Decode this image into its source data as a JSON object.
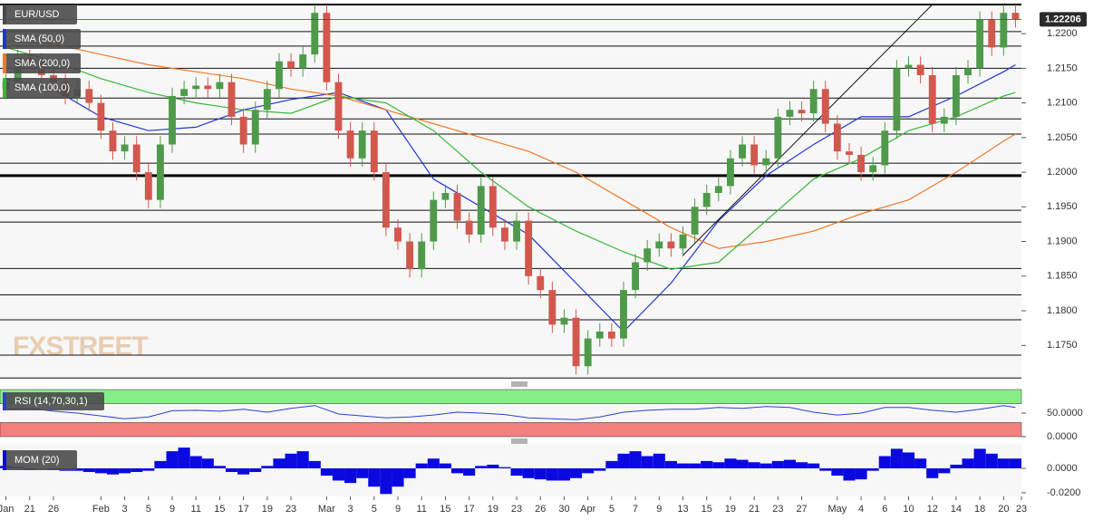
{
  "chart_data": [
    {
      "type": "candlestick",
      "title": "EUR/USD",
      "up_color": "#4f9a4a",
      "down_color": "#d2574d",
      "xlim": [
        -0.5,
        85.5
      ],
      "ylim": [
        1.1702,
        1.2242
      ],
      "yticks": [
        {
          "value": 1.175,
          "label": "1.1750"
        },
        {
          "value": 1.18,
          "label": "1.1800"
        },
        {
          "value": 1.185,
          "label": "1.1850"
        },
        {
          "value": 1.19,
          "label": "1.1900"
        },
        {
          "value": 1.195,
          "label": "1.1950"
        },
        {
          "value": 1.2,
          "label": "1.2000"
        },
        {
          "value": 1.205,
          "label": "1.2050"
        },
        {
          "value": 1.21,
          "label": "1.2100"
        },
        {
          "value": 1.215,
          "label": "1.2150"
        },
        {
          "value": 1.22,
          "label": "1.2200"
        }
      ],
      "last_price": 1.22206,
      "last_price_color": "#2a3f9a",
      "watermark": "FXSTREET",
      "levels": [
        1.2203,
        1.2182,
        1.215,
        1.2107,
        1.2077,
        1.2055,
        1.2013,
        1.1945,
        1.1928,
        1.1861,
        1.1823,
        1.1787,
        1.1736,
        1.1703
      ],
      "key_level": 1.1995,
      "trendline": {
        "x": [
          57,
          78
        ],
        "y": [
          1.188,
          1.2242
        ]
      },
      "x": [
        0,
        1,
        2,
        3,
        4,
        5,
        6,
        7,
        8,
        9,
        10,
        11,
        12,
        13,
        14,
        15,
        16,
        17,
        18,
        19,
        20,
        21,
        22,
        23,
        24,
        25,
        26,
        27,
        28,
        29,
        30,
        31,
        32,
        33,
        34,
        35,
        36,
        37,
        38,
        39,
        40,
        41,
        42,
        43,
        44,
        45,
        46,
        47,
        48,
        49,
        50,
        51,
        52,
        53,
        54,
        55,
        56,
        57,
        58,
        59,
        60,
        61,
        62,
        63,
        64,
        65,
        66,
        67,
        68,
        69,
        70,
        71,
        72,
        73,
        74,
        75,
        76,
        77,
        78,
        79,
        80,
        81,
        82,
        83,
        84,
        85
      ],
      "open": [
        1.212,
        1.213,
        1.2165,
        1.216,
        1.214,
        1.213,
        1.211,
        1.212,
        1.21,
        1.206,
        1.203,
        1.204,
        1.2,
        1.196,
        1.204,
        1.211,
        1.212,
        1.2125,
        1.212,
        1.213,
        1.208,
        1.204,
        1.209,
        1.212,
        1.216,
        1.215,
        1.217,
        1.223,
        1.213,
        1.206,
        1.202,
        1.206,
        1.2,
        1.192,
        1.19,
        1.186,
        1.19,
        1.196,
        1.197,
        1.193,
        1.191,
        1.198,
        1.192,
        1.19,
        1.193,
        1.185,
        1.183,
        1.178,
        1.179,
        1.172,
        1.176,
        1.177,
        1.176,
        1.183,
        1.187,
        1.189,
        1.19,
        1.189,
        1.191,
        1.195,
        1.197,
        1.198,
        1.202,
        1.204,
        1.201,
        1.202,
        1.208,
        1.209,
        1.2085,
        1.212,
        1.207,
        1.203,
        1.2025,
        1.2,
        1.201,
        1.206,
        1.215,
        1.2155,
        1.214,
        1.207,
        1.208,
        1.214,
        1.215,
        1.222,
        1.218,
        1.223
      ],
      "high": [
        1.2142,
        1.2177,
        1.2177,
        1.2172,
        1.2152,
        1.2142,
        1.2132,
        1.2132,
        1.2112,
        1.2072,
        1.2052,
        1.2052,
        1.2012,
        1.2052,
        1.2122,
        1.2132,
        1.2137,
        1.2137,
        1.2142,
        1.2142,
        1.2092,
        1.2102,
        1.2132,
        1.2172,
        1.2172,
        1.2182,
        1.2242,
        1.2242,
        1.2142,
        1.2072,
        1.2072,
        1.2072,
        1.2012,
        1.1932,
        1.1912,
        1.1912,
        1.1972,
        1.1982,
        1.1982,
        1.1942,
        1.1992,
        1.1992,
        1.1932,
        1.1942,
        1.1942,
        1.1862,
        1.1842,
        1.1802,
        1.1802,
        1.1772,
        1.1782,
        1.1782,
        1.1842,
        1.1882,
        1.1902,
        1.1912,
        1.1912,
        1.1922,
        1.1962,
        1.1982,
        1.1992,
        1.2032,
        1.2052,
        1.2052,
        1.2032,
        1.2092,
        1.2102,
        1.2102,
        1.2132,
        1.2132,
        1.2082,
        1.2042,
        1.2037,
        1.2022,
        1.2072,
        1.2162,
        1.2167,
        1.2167,
        1.2152,
        1.2092,
        1.2152,
        1.2162,
        1.2232,
        1.2232,
        1.2242,
        1.2242
      ],
      "low": [
        1.2108,
        1.2118,
        1.2148,
        1.2128,
        1.2118,
        1.2098,
        1.2098,
        1.2088,
        1.2048,
        1.2018,
        1.2018,
        1.1988,
        1.1948,
        1.1948,
        1.2028,
        1.2098,
        1.2108,
        1.2108,
        1.2108,
        1.2068,
        1.2028,
        1.2028,
        1.2078,
        1.2108,
        1.2138,
        1.2138,
        1.2158,
        1.2118,
        1.2048,
        1.2008,
        1.2008,
        1.1988,
        1.1908,
        1.1888,
        1.1848,
        1.1848,
        1.1888,
        1.1948,
        1.1918,
        1.1898,
        1.1898,
        1.1908,
        1.1888,
        1.1888,
        1.1838,
        1.1818,
        1.1768,
        1.1768,
        1.1708,
        1.1708,
        1.1748,
        1.1748,
        1.1748,
        1.1818,
        1.1858,
        1.1878,
        1.1878,
        1.1878,
        1.1898,
        1.1938,
        1.1958,
        1.1968,
        1.2008,
        1.1998,
        1.1998,
        1.2008,
        1.2068,
        1.2073,
        1.2073,
        1.2058,
        1.2018,
        1.2013,
        1.1988,
        1.1988,
        1.1998,
        1.2048,
        1.2138,
        1.2128,
        1.2058,
        1.2058,
        1.2068,
        1.2128,
        1.2138,
        1.2168,
        1.2168,
        1.2209
      ],
      "close": [
        1.213,
        1.2165,
        1.216,
        1.214,
        1.213,
        1.211,
        1.212,
        1.21,
        1.206,
        1.203,
        1.204,
        1.2,
        1.196,
        1.204,
        1.211,
        1.212,
        1.2125,
        1.212,
        1.213,
        1.208,
        1.204,
        1.209,
        1.212,
        1.216,
        1.215,
        1.217,
        1.223,
        1.213,
        1.206,
        1.202,
        1.206,
        1.2,
        1.192,
        1.19,
        1.186,
        1.19,
        1.196,
        1.197,
        1.193,
        1.191,
        1.198,
        1.192,
        1.19,
        1.193,
        1.185,
        1.183,
        1.178,
        1.179,
        1.172,
        1.176,
        1.177,
        1.176,
        1.183,
        1.187,
        1.189,
        1.19,
        1.189,
        1.191,
        1.195,
        1.197,
        1.198,
        1.202,
        1.204,
        1.201,
        1.202,
        1.208,
        1.209,
        1.2085,
        1.212,
        1.207,
        1.203,
        1.2025,
        1.2,
        1.201,
        1.206,
        1.215,
        1.2155,
        1.214,
        1.207,
        1.208,
        1.214,
        1.215,
        1.222,
        1.218,
        1.223,
        1.2221
      ],
      "series": [
        {
          "name": "SMA (50,0)",
          "color": "#1f36d0",
          "x": [
            0,
            4,
            8,
            12,
            16,
            20,
            24,
            28,
            32,
            36,
            40,
            44,
            48,
            52,
            56,
            60,
            64,
            68,
            72,
            76,
            80,
            84,
            85
          ],
          "values": [
            1.2135,
            1.212,
            1.208,
            1.206,
            1.2065,
            1.209,
            1.2105,
            1.2115,
            1.209,
            1.199,
            1.195,
            1.191,
            1.184,
            1.177,
            1.184,
            1.193,
            1.1995,
            1.204,
            1.208,
            1.208,
            1.211,
            1.2145,
            1.2155
          ]
        },
        {
          "name": "SMA (200,0)",
          "color": "#f07a2a",
          "x": [
            0,
            4,
            8,
            12,
            16,
            20,
            24,
            28,
            32,
            36,
            40,
            44,
            48,
            52,
            56,
            60,
            64,
            68,
            72,
            76,
            80,
            84,
            85
          ],
          "values": [
            1.219,
            1.2185,
            1.217,
            1.2155,
            1.2145,
            1.2135,
            1.212,
            1.211,
            1.209,
            1.207,
            1.205,
            1.203,
            1.2,
            1.196,
            1.192,
            1.189,
            1.19,
            1.1915,
            1.194,
            1.196,
            1.2,
            1.2045,
            1.2055
          ]
        },
        {
          "name": "SMA (100,0)",
          "color": "#38b838",
          "x": [
            0,
            4,
            8,
            12,
            16,
            20,
            24,
            28,
            32,
            36,
            40,
            44,
            48,
            52,
            56,
            60,
            64,
            68,
            72,
            76,
            80,
            84,
            85
          ],
          "values": [
            1.218,
            1.216,
            1.2135,
            1.2115,
            1.21,
            1.209,
            1.2085,
            1.211,
            1.21,
            1.206,
            1.2,
            1.195,
            1.1915,
            1.1885,
            1.186,
            1.187,
            1.193,
            1.199,
            1.202,
            1.206,
            1.208,
            1.211,
            1.2115
          ]
        }
      ]
    },
    {
      "type": "line",
      "xlim": [
        -0.5,
        85.5
      ],
      "ylim": [
        0,
        100
      ],
      "yticks": [
        {
          "value": 50,
          "label": "50.0000"
        },
        {
          "value": 0,
          "label": "0.0000"
        }
      ],
      "zones": [
        {
          "from": 70,
          "to": 100,
          "color": "#86ee86"
        },
        {
          "from": 0,
          "to": 30,
          "color": "#f47f7f"
        }
      ],
      "series": [
        {
          "name": "RSI (14,70,30,1)",
          "color": "#2b3fd0",
          "x": [
            0,
            2,
            4,
            6,
            8,
            10,
            12,
            14,
            16,
            18,
            20,
            22,
            24,
            26,
            28,
            30,
            32,
            34,
            36,
            38,
            40,
            42,
            44,
            46,
            48,
            50,
            52,
            54,
            56,
            58,
            60,
            62,
            64,
            66,
            68,
            70,
            72,
            74,
            76,
            78,
            80,
            82,
            84,
            85
          ],
          "values": [
            58,
            60,
            54,
            50,
            44,
            38,
            42,
            55,
            56,
            54,
            58,
            52,
            60,
            66,
            48,
            44,
            40,
            42,
            46,
            52,
            50,
            47,
            40,
            38,
            36,
            42,
            52,
            56,
            58,
            58,
            62,
            60,
            64,
            62,
            52,
            46,
            50,
            62,
            62,
            56,
            52,
            58,
            66,
            62
          ]
        }
      ]
    },
    {
      "type": "bar",
      "xlim": [
        -0.5,
        85.5
      ],
      "ylim": [
        -0.023,
        0.02
      ],
      "yticks": [
        {
          "value": 0,
          "label": "0.0000"
        },
        {
          "value": -0.02,
          "label": "-0.0200"
        }
      ],
      "xticks": [
        {
          "value": 0,
          "label": "Jan"
        },
        {
          "value": 2,
          "label": "21"
        },
        {
          "value": 4,
          "label": "26"
        },
        {
          "value": 8,
          "label": "Feb"
        },
        {
          "value": 10,
          "label": "3"
        },
        {
          "value": 12,
          "label": "5"
        },
        {
          "value": 14,
          "label": "9"
        },
        {
          "value": 16,
          "label": "11"
        },
        {
          "value": 18,
          "label": "15"
        },
        {
          "value": 20,
          "label": "17"
        },
        {
          "value": 22,
          "label": "19"
        },
        {
          "value": 24,
          "label": "23"
        },
        {
          "value": 27,
          "label": "Mar"
        },
        {
          "value": 29,
          "label": "3"
        },
        {
          "value": 31,
          "label": "5"
        },
        {
          "value": 33,
          "label": "9"
        },
        {
          "value": 35,
          "label": "11"
        },
        {
          "value": 37,
          "label": "15"
        },
        {
          "value": 39,
          "label": "17"
        },
        {
          "value": 41,
          "label": "19"
        },
        {
          "value": 43,
          "label": "23"
        },
        {
          "value": 45,
          "label": "26"
        },
        {
          "value": 47,
          "label": "30"
        },
        {
          "value": 49,
          "label": "Apr"
        },
        {
          "value": 51,
          "label": "5"
        },
        {
          "value": 53,
          "label": "7"
        },
        {
          "value": 55,
          "label": "9"
        },
        {
          "value": 57,
          "label": "13"
        },
        {
          "value": 59,
          "label": "15"
        },
        {
          "value": 61,
          "label": "19"
        },
        {
          "value": 63,
          "label": "21"
        },
        {
          "value": 65,
          "label": "23"
        },
        {
          "value": 67,
          "label": "27"
        },
        {
          "value": 70,
          "label": "May"
        },
        {
          "value": 72,
          "label": "4"
        },
        {
          "value": 74,
          "label": "6"
        },
        {
          "value": 76,
          "label": "10"
        },
        {
          "value": 78,
          "label": "12"
        },
        {
          "value": 80,
          "label": "14"
        },
        {
          "value": 82,
          "label": "18"
        },
        {
          "value": 84,
          "label": "20"
        },
        {
          "value": 85.5,
          "label": "23"
        }
      ],
      "series": [
        {
          "name": "MOM (20)",
          "color": "#0a0ae0",
          "x": [
            0,
            1,
            2,
            3,
            4,
            5,
            6,
            7,
            8,
            9,
            10,
            11,
            12,
            13,
            14,
            15,
            16,
            17,
            18,
            19,
            20,
            21,
            22,
            23,
            24,
            25,
            26,
            27,
            28,
            29,
            30,
            31,
            32,
            33,
            34,
            35,
            36,
            37,
            38,
            39,
            40,
            41,
            42,
            43,
            44,
            45,
            46,
            47,
            48,
            49,
            50,
            51,
            52,
            53,
            54,
            55,
            56,
            57,
            58,
            59,
            60,
            61,
            62,
            63,
            64,
            65,
            66,
            67,
            68,
            69,
            70,
            71,
            72,
            73,
            74,
            75,
            76,
            77,
            78,
            79,
            80,
            81,
            82,
            83,
            84,
            85
          ],
          "values": [
            0.002,
            0.001,
            -0.001,
            0,
            -0.001,
            -0.002,
            -0.002,
            -0.003,
            -0.004,
            -0.005,
            -0.004,
            -0.003,
            -0.002,
            0.006,
            0.014,
            0.017,
            0.01,
            0.008,
            0.002,
            -0.003,
            -0.005,
            -0.003,
            0.002,
            0.008,
            0.012,
            0.014,
            0.006,
            -0.006,
            -0.01,
            -0.012,
            -0.008,
            -0.015,
            -0.021,
            -0.015,
            -0.008,
            0.004,
            0.008,
            0.004,
            -0.004,
            -0.006,
            0.002,
            0.003,
            0.001,
            -0.006,
            -0.008,
            -0.009,
            -0.01,
            -0.01,
            -0.008,
            -0.004,
            -0.002,
            0.006,
            0.012,
            0.014,
            0.01,
            0.012,
            0.006,
            0.004,
            0.004,
            0.006,
            0.005,
            0.008,
            0.007,
            0.005,
            0.004,
            0.006,
            0.007,
            0.005,
            0.004,
            -0.002,
            -0.006,
            -0.01,
            -0.009,
            -0.002,
            0.01,
            0.016,
            0.013,
            0.008,
            -0.008,
            -0.004,
            0.003,
            0.008,
            0.016,
            0.012,
            0.008,
            0.008
          ]
        }
      ]
    }
  ]
}
